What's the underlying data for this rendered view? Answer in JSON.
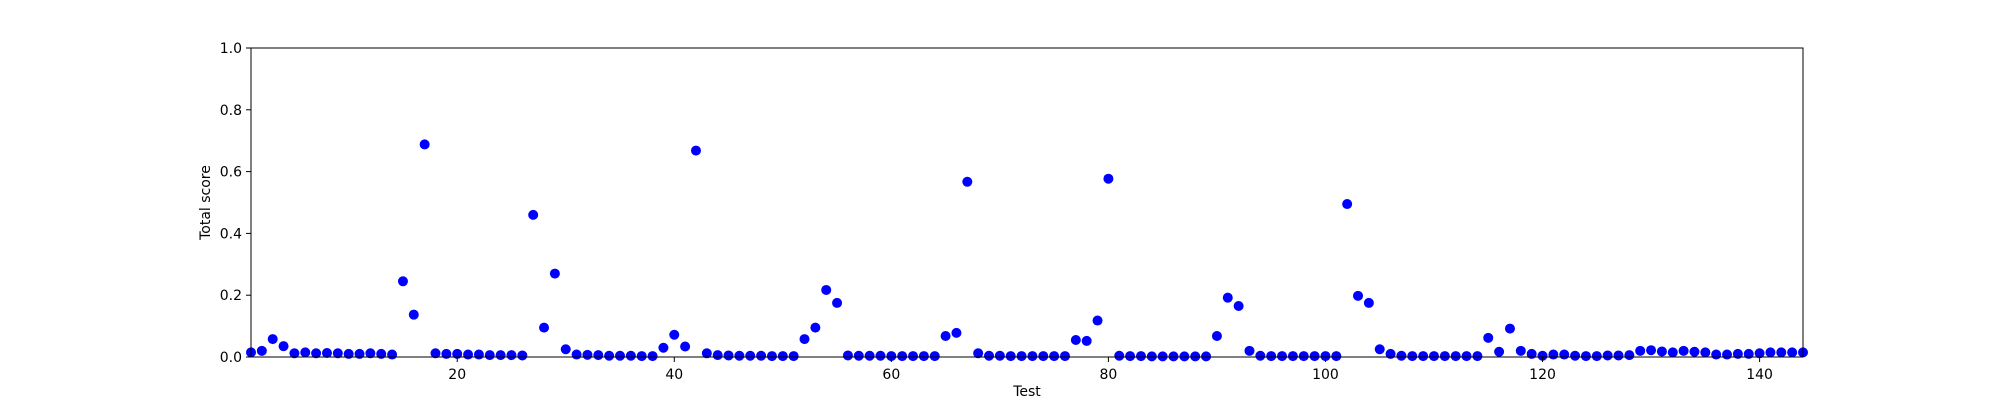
{
  "chart_data": {
    "type": "scatter",
    "title": "",
    "xlabel": "Test",
    "ylabel": "Total score",
    "xlim": [
      1,
      144
    ],
    "ylim": [
      0,
      1.0
    ],
    "xticks": [
      20,
      40,
      60,
      80,
      100,
      120,
      140
    ],
    "yticks": [
      0.0,
      0.2,
      0.4,
      0.6,
      0.8,
      1.0
    ],
    "xtick_labels": [
      "20",
      "40",
      "60",
      "80",
      "100",
      "120",
      "140"
    ],
    "ytick_labels": [
      "0.0",
      "0.2",
      "0.4",
      "0.6",
      "0.8",
      "1.0"
    ],
    "grid": false,
    "marker_color": "#0000ff",
    "series": [
      {
        "x": [
          1,
          2,
          3,
          4,
          5,
          6,
          7,
          8,
          9,
          10,
          11,
          12,
          13,
          14,
          15,
          16,
          17,
          18,
          19,
          20,
          21,
          22,
          23,
          24,
          25,
          26,
          27,
          28,
          29,
          30,
          31,
          32,
          33,
          34,
          35,
          36,
          37,
          38,
          39,
          40,
          41,
          42,
          43,
          44,
          45,
          46,
          47,
          48,
          49,
          50,
          51,
          52,
          53,
          54,
          55,
          56,
          57,
          58,
          59,
          60,
          61,
          62,
          63,
          64,
          65,
          66,
          67,
          68,
          69,
          70,
          71,
          72,
          73,
          74,
          75,
          76,
          77,
          78,
          79,
          80,
          81,
          82,
          83,
          84,
          85,
          86,
          87,
          88,
          89,
          90,
          91,
          92,
          93,
          94,
          95,
          96,
          97,
          98,
          99,
          100,
          101,
          102,
          103,
          104,
          105,
          106,
          107,
          108,
          109,
          110,
          111,
          112,
          113,
          114,
          115,
          116,
          117,
          118,
          119,
          120,
          121,
          122,
          123,
          124,
          125,
          126,
          127,
          128,
          129,
          130,
          131,
          132,
          133,
          134,
          135,
          136,
          137,
          138,
          139,
          140,
          141,
          142,
          143,
          144
        ],
        "y": [
          0.015,
          0.02,
          0.058,
          0.035,
          0.012,
          0.015,
          0.012,
          0.013,
          0.012,
          0.01,
          0.01,
          0.012,
          0.01,
          0.008,
          0.245,
          0.137,
          0.688,
          0.012,
          0.01,
          0.01,
          0.008,
          0.008,
          0.006,
          0.006,
          0.006,
          0.005,
          0.46,
          0.095,
          0.27,
          0.025,
          0.008,
          0.007,
          0.006,
          0.004,
          0.004,
          0.004,
          0.003,
          0.003,
          0.03,
          0.072,
          0.034,
          0.668,
          0.012,
          0.006,
          0.005,
          0.004,
          0.004,
          0.004,
          0.003,
          0.003,
          0.003,
          0.058,
          0.095,
          0.217,
          0.175,
          0.005,
          0.004,
          0.004,
          0.004,
          0.003,
          0.003,
          0.003,
          0.003,
          0.003,
          0.068,
          0.078,
          0.567,
          0.012,
          0.004,
          0.004,
          0.003,
          0.003,
          0.003,
          0.003,
          0.003,
          0.003,
          0.055,
          0.052,
          0.118,
          0.577,
          0.004,
          0.003,
          0.003,
          0.002,
          0.002,
          0.002,
          0.002,
          0.002,
          0.002,
          0.068,
          0.192,
          0.165,
          0.02,
          0.004,
          0.003,
          0.003,
          0.003,
          0.003,
          0.003,
          0.003,
          0.003,
          0.495,
          0.198,
          0.175,
          0.025,
          0.01,
          0.004,
          0.003,
          0.003,
          0.003,
          0.003,
          0.003,
          0.003,
          0.003,
          0.062,
          0.017,
          0.092,
          0.02,
          0.01,
          0.004,
          0.008,
          0.008,
          0.004,
          0.003,
          0.003,
          0.005,
          0.005,
          0.006,
          0.02,
          0.022,
          0.018,
          0.015,
          0.02,
          0.017,
          0.015,
          0.008,
          0.008,
          0.01,
          0.01,
          0.012,
          0.015,
          0.015,
          0.015,
          0.015
        ]
      }
    ]
  }
}
